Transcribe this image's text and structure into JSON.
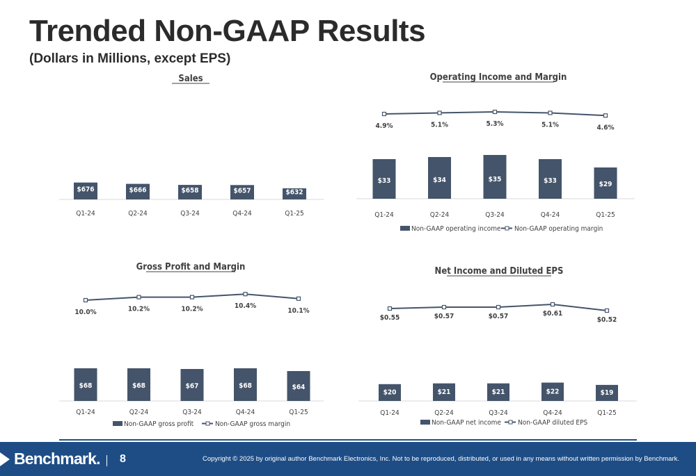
{
  "header": {
    "title": "Trended Non-GAAP Results",
    "subtitle": "(Dollars in Millions, except EPS)"
  },
  "footer": {
    "logo_text": "Benchmark.",
    "page_number": "8",
    "copyright": "Copyright © 2025 by original author Benchmark Electronics, Inc. Not to be reproduced, distributed, or used in any means without written permission by Benchmark."
  },
  "colors": {
    "bar": "#44546a",
    "line": "#44546a",
    "footer": "#1e4d86"
  },
  "chart_data": [
    {
      "id": "sales",
      "type": "bar",
      "title": "Sales",
      "categories": [
        "Q1-24",
        "Q2-24",
        "Q3-24",
        "Q4-24",
        "Q1-25"
      ],
      "series": [
        {
          "values": [
            676,
            666,
            658,
            657,
            632
          ],
          "labels": [
            "$676",
            "$666",
            "$658",
            "$657",
            "$632"
          ]
        }
      ],
      "legend": []
    },
    {
      "id": "operating",
      "type": "bar+line",
      "title": "Operating Income and Margin",
      "categories": [
        "Q1-24",
        "Q2-24",
        "Q3-24",
        "Q4-24",
        "Q1-25"
      ],
      "bars": {
        "name": "Non-GAAP operating income",
        "values": [
          33,
          34,
          35,
          33,
          29
        ],
        "labels": [
          "$33",
          "$34",
          "$35",
          "$33",
          "$29"
        ]
      },
      "line": {
        "name": "Non-GAAP operating margin",
        "values": [
          4.9,
          5.1,
          5.3,
          5.1,
          4.6
        ],
        "labels": [
          "4.9%",
          "5.1%",
          "5.3%",
          "5.1%",
          "4.6%"
        ]
      },
      "legend_position": "bottom"
    },
    {
      "id": "gross",
      "type": "bar+line",
      "title": "Gross Profit and Margin",
      "categories": [
        "Q1-24",
        "Q2-24",
        "Q3-24",
        "Q4-24",
        "Q1-25"
      ],
      "bars": {
        "name": "Non-GAAP gross profit",
        "values": [
          68,
          68,
          67,
          68,
          64
        ],
        "labels": [
          "$68",
          "$68",
          "$67",
          "$68",
          "$64"
        ]
      },
      "line": {
        "name": "Non-GAAP gross margin",
        "values": [
          10.0,
          10.2,
          10.2,
          10.4,
          10.1
        ],
        "labels": [
          "10.0%",
          "10.2%",
          "10.2%",
          "10.4%",
          "10.1%"
        ]
      },
      "legend_position": "bottom"
    },
    {
      "id": "net",
      "type": "bar+line",
      "title": "Net Income and Diluted EPS",
      "categories": [
        "Q1-24",
        "Q2-24",
        "Q3-24",
        "Q4-24",
        "Q1-25"
      ],
      "bars": {
        "name": "Non-GAAP net income",
        "values": [
          20,
          21,
          21,
          22,
          19
        ],
        "labels": [
          "$20",
          "$21",
          "$21",
          "$22",
          "$19"
        ]
      },
      "line": {
        "name": "Non-GAAP diluted EPS",
        "values": [
          0.55,
          0.57,
          0.57,
          0.61,
          0.52
        ],
        "labels": [
          "$0.55",
          "$0.57",
          "$0.57",
          "$0.61",
          "$0.52"
        ]
      },
      "legend_position": "bottom"
    }
  ]
}
